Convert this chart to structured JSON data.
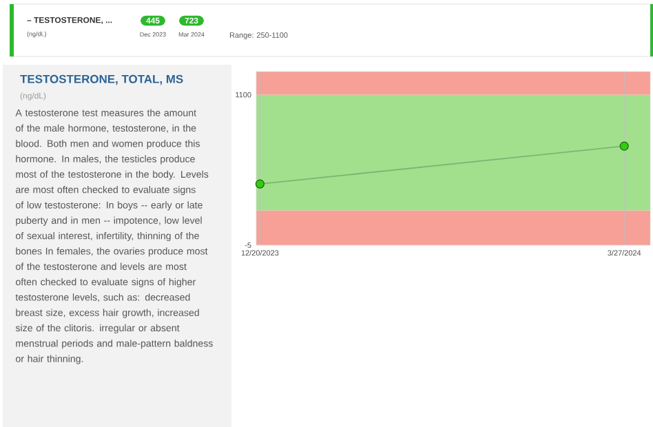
{
  "chart_data": {
    "type": "line",
    "title": "TESTOSTERONE, TOTAL, MS",
    "subtitle": "(ng/dL)",
    "annotations": [
      "– TESTOSTERONE, ...",
      "(ng/dL)",
      "445",
      "Dec 2023",
      "723",
      "Mar 2024",
      "Range: 250-1100",
      "A testosterone test measures the amount of the male hormone, testosterone, in the blood. Both men and women produce this hormone. In males, the testicles produce most of the testosterone in the body. Levels are most often checked to evaluate signs of low testosterone: In boys -- early or late puberty and in men -- impotence, low level of sexual interest, infertility, thinning of the bones In females, the ovaries produce most of the testosterone and levels are most often checked to evaluate signs of higher testosterone levels, such as: decreased breast size, excess hair growth, increased size of the clitoris. irregular or absent menstrual periods and male-pattern baldness or hair thinning."
    ],
    "x": [
      "2023-12-20",
      "2024-03-27"
    ],
    "series": [
      {
        "color": "#33cc11",
        "values": [
          445,
          723
        ]
      }
    ],
    "xlim": [
      "2023-12-19",
      "2024-04-03"
    ],
    "xticks": [
      {
        "value": "2023-12-20",
        "label": "12/20/2023"
      },
      {
        "value": "2024-03-27",
        "label": "3/27/2024"
      }
    ],
    "ylim": [
      -5,
      1270
    ],
    "yticks": [
      -5,
      1100
    ],
    "bands": [
      {
        "axis": "y",
        "from": -5,
        "to": 250,
        "color": "#f6a097"
      },
      {
        "axis": "y",
        "from": 250,
        "to": 1100,
        "color": "#a2e08e"
      },
      {
        "axis": "y",
        "from": 1100,
        "to": 1270,
        "color": "#f6a097"
      }
    ],
    "grid": "x",
    "marker": "circle",
    "line_style": "solid"
  }
}
